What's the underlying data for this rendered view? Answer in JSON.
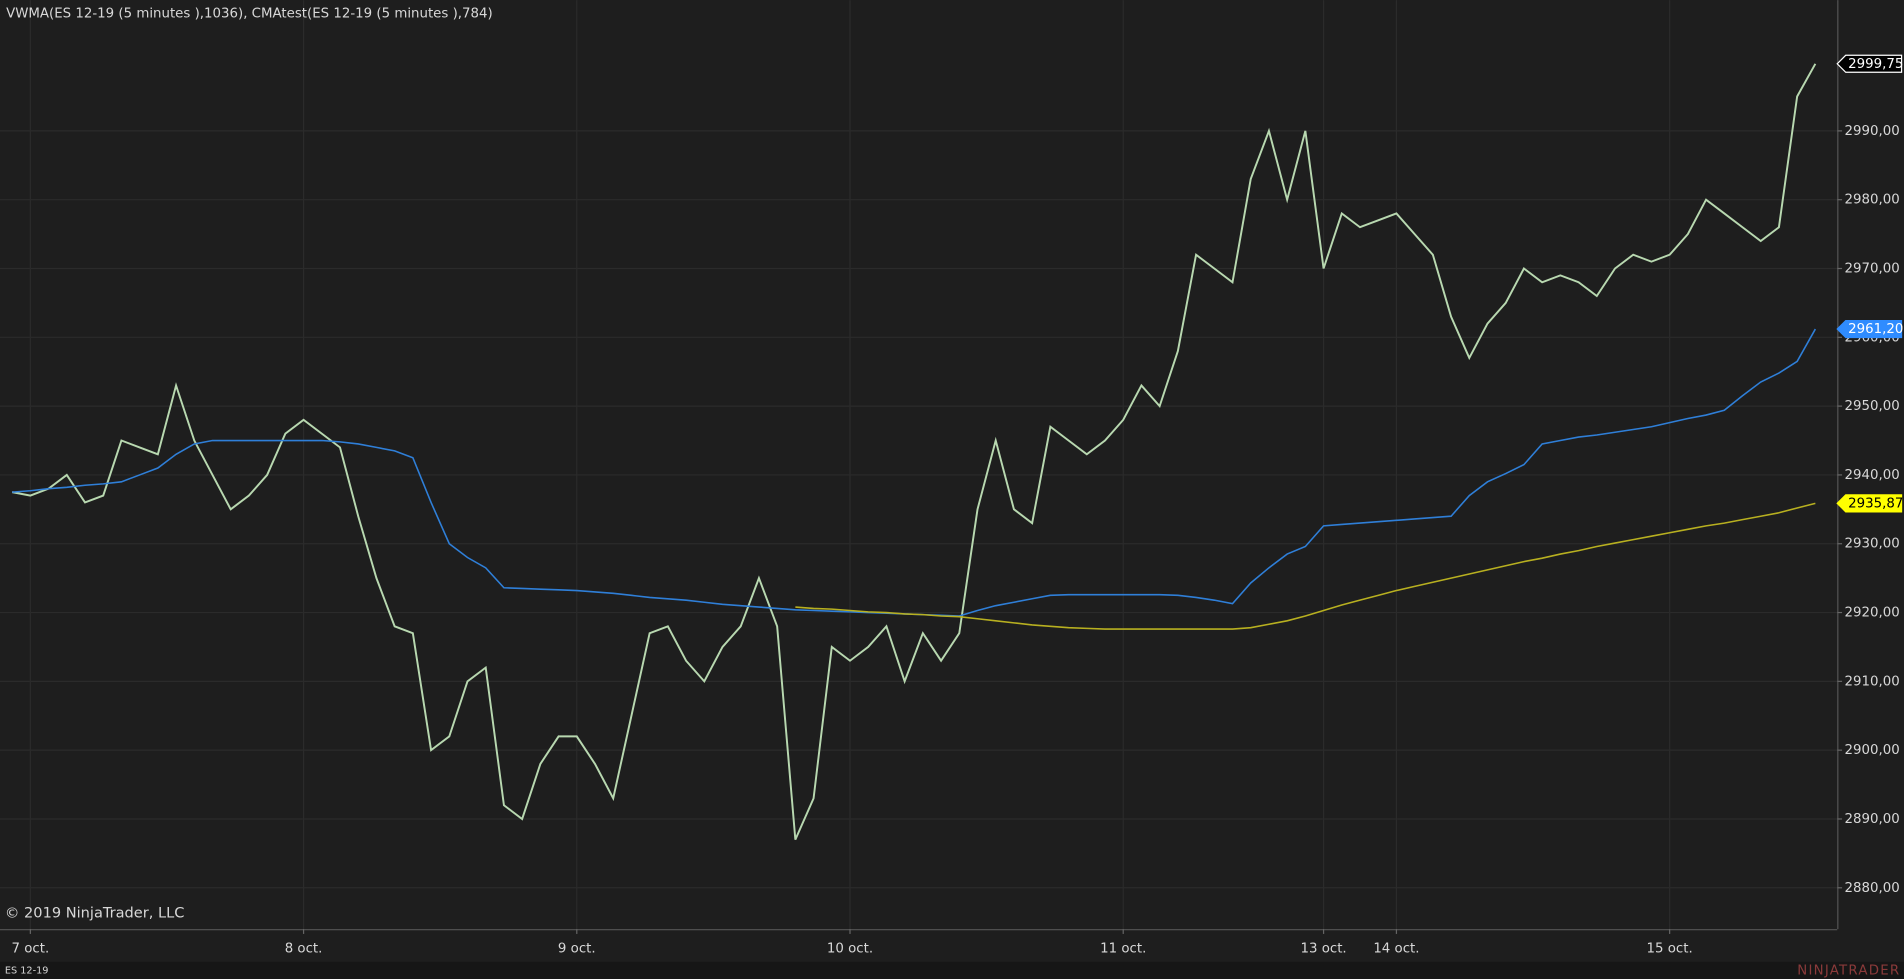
{
  "chart_data": {
    "type": "line",
    "title": "VWMA(ES 12-19 (5 minutes ),1036), CMAtest(ES 12-19 (5 minutes ),784)",
    "copyright": "© 2019 NinjaTrader, LLC",
    "logo": "NINJATRADER",
    "categories": [
      null,
      "7 oct.",
      null,
      null,
      null,
      null,
      null,
      null,
      null,
      null,
      null,
      null,
      null,
      null,
      null,
      null,
      "8 oct.",
      null,
      null,
      null,
      null,
      null,
      null,
      null,
      null,
      null,
      null,
      null,
      null,
      null,
      null,
      "9 oct.",
      null,
      null,
      null,
      null,
      null,
      null,
      null,
      null,
      null,
      null,
      null,
      null,
      null,
      null,
      "10 oct.",
      null,
      null,
      null,
      null,
      null,
      null,
      null,
      null,
      null,
      null,
      null,
      null,
      null,
      null,
      "11 oct.",
      null,
      null,
      null,
      null,
      null,
      null,
      null,
      null,
      null,
      null,
      "13 oct.",
      null,
      null,
      null,
      "14 oct.",
      null,
      null,
      null,
      null,
      null,
      null,
      null,
      null,
      null,
      null,
      null,
      null,
      null,
      null,
      "15 oct.",
      null,
      null,
      null,
      null,
      null,
      null,
      null,
      null
    ],
    "ylim": [
      2874,
      3009
    ],
    "yticks": [
      {
        "value": 2880,
        "label": "2880,00"
      },
      {
        "value": 2890,
        "label": "2890,00"
      },
      {
        "value": 2900,
        "label": "2900,00"
      },
      {
        "value": 2910,
        "label": "2910,00"
      },
      {
        "value": 2920,
        "label": "2920,00"
      },
      {
        "value": 2930,
        "label": "2930,00"
      },
      {
        "value": 2940,
        "label": "2940,00"
      },
      {
        "value": 2950,
        "label": "2950,00"
      },
      {
        "value": 2960,
        "label": "2960,00"
      },
      {
        "value": 2970,
        "label": "2970,00"
      },
      {
        "value": 2980,
        "label": "2980,00"
      },
      {
        "value": 2990,
        "label": "2990,00"
      }
    ],
    "grid": true,
    "series": [
      {
        "name": "ES 12-19",
        "color": "#b8d8b0",
        "last_label": "2999,75",
        "values": [
          2937.5,
          2937,
          2938,
          2940,
          2936,
          2937,
          2945,
          2944,
          2943,
          2953,
          2945,
          2940,
          2935,
          2937,
          2940,
          2946,
          2948,
          2946,
          2944,
          2934,
          2925,
          2918,
          2917,
          2900,
          2902,
          2910,
          2912,
          2892,
          2890,
          2898,
          2902,
          2902,
          2898,
          2893,
          2905,
          2917,
          2918,
          2913,
          2910,
          2915,
          2918,
          2925,
          2918,
          2887,
          2893,
          2915,
          2913,
          2915,
          2918,
          2910,
          2917,
          2913,
          2917,
          2935,
          2945,
          2935,
          2933,
          2947,
          2945,
          2943,
          2945,
          2948,
          2953,
          2950,
          2958,
          2972,
          2970,
          2968,
          2983,
          2990,
          2980,
          2990,
          2970,
          2978,
          2976,
          2977,
          2978,
          2975,
          2972,
          2963,
          2957,
          2962,
          2965,
          2970,
          2968,
          2969,
          2968,
          2966,
          2970,
          2972,
          2971,
          2972,
          2975,
          2980,
          2978,
          2976,
          2974,
          2976,
          2995,
          2999.75
        ]
      },
      {
        "color": "#2f7fd8",
        "last_label": "2961,20",
        "values": [
          2937.5,
          2937.7,
          2938,
          2938.2,
          2938.5,
          2938.7,
          2939,
          2940,
          2941,
          2943,
          2944.5,
          2945,
          2945,
          2945,
          2945,
          2945,
          2945,
          2945,
          2944.8,
          2944.5,
          2944,
          2943.5,
          2942.5,
          2936,
          2930,
          2928,
          2926.5,
          2923.6,
          2923.5,
          2923.4,
          2923.3,
          2923.2,
          2923,
          2922.8,
          2922.5,
          2922.2,
          2922,
          2921.8,
          2921.5,
          2921.2,
          2921,
          2920.8,
          2920.6,
          2920.4,
          2920.3,
          2920.2,
          2920.1,
          2920,
          2919.9,
          2919.8,
          2919.7,
          2919.6,
          2919.5,
          2920.3,
          2921,
          2921.5,
          2922,
          2922.5,
          2922.6,
          2922.6,
          2922.6,
          2922.6,
          2922.6,
          2922.6,
          2922.5,
          2922.2,
          2921.8,
          2921.3,
          2924.3,
          2926.5,
          2928.5,
          2929.6,
          2932.6,
          2932.8,
          2933,
          2933.2,
          2933.4,
          2933.6,
          2933.8,
          2934,
          2937,
          2939,
          2940.2,
          2941.5,
          2944.5,
          2945,
          2945.5,
          2945.8,
          2946.2,
          2946.6,
          2947,
          2947.6,
          2948.2,
          2948.7,
          2949.4,
          2951.5,
          2953.5,
          2954.8,
          2956.5,
          2961.2
        ]
      },
      {
        "color": "#b8b020",
        "last_label": "2935,87",
        "values": [
          null,
          null,
          null,
          null,
          null,
          null,
          null,
          null,
          null,
          null,
          null,
          null,
          null,
          null,
          null,
          null,
          null,
          null,
          null,
          null,
          null,
          null,
          null,
          null,
          null,
          null,
          null,
          null,
          null,
          null,
          null,
          null,
          null,
          null,
          null,
          null,
          null,
          null,
          null,
          null,
          null,
          null,
          null,
          2920.8,
          2920.6,
          2920.5,
          2920.3,
          2920.1,
          2920,
          2919.8,
          2919.7,
          2919.5,
          2919.4,
          2919.1,
          2918.8,
          2918.5,
          2918.2,
          2918,
          2917.8,
          2917.7,
          2917.6,
          2917.6,
          2917.6,
          2917.6,
          2917.6,
          2917.6,
          2917.6,
          2917.6,
          2917.8,
          2918.3,
          2918.8,
          2919.5,
          2920.3,
          2921.1,
          2921.8,
          2922.5,
          2923.2,
          2923.8,
          2924.4,
          2925,
          2925.6,
          2926.2,
          2926.8,
          2927.4,
          2927.9,
          2928.5,
          2929,
          2929.6,
          2930.1,
          2930.6,
          2931.1,
          2931.6,
          2932.1,
          2932.6,
          2933,
          2933.5,
          2934,
          2934.5,
          2935.2,
          2935.87
        ]
      }
    ]
  }
}
